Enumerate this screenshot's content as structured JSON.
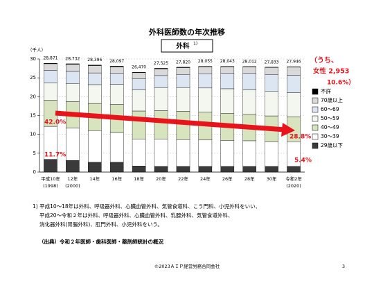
{
  "chart_data": {
    "type": "stacked_bar",
    "title": "外科医師数の年次推移",
    "subtitle": "外科",
    "subtitle_note": "1)",
    "y_label": "（千人）",
    "categories": [
      "平成10年",
      "12年",
      "14年",
      "16年",
      "18年",
      "20年",
      "22年",
      "24年",
      "26年",
      "28年",
      "30年",
      "令和2年"
    ],
    "category_sublabels": [
      "(1998)",
      "(2000)",
      null,
      null,
      null,
      null,
      null,
      null,
      null,
      null,
      null,
      "(2020)"
    ],
    "ylim": [
      0,
      30
    ],
    "yticks": [
      0,
      5,
      10,
      15,
      20,
      25,
      30
    ],
    "grid": true,
    "series": [
      {
        "name": "29歳以下",
        "color": "#3a3a3a",
        "values": [
          3.38,
          3.1,
          2.6,
          2.6,
          1.6,
          1.5,
          1.5,
          1.5,
          1.5,
          1.5,
          1.5,
          1.51
        ]
      },
      {
        "name": "30～39",
        "color": "#ffffff",
        "values": [
          8.75,
          8.6,
          8.4,
          7.9,
          7.2,
          7.3,
          7.1,
          7.0,
          6.9,
          6.8,
          6.6,
          6.54
        ]
      },
      {
        "name": "40～49",
        "color": "#d7e4bd",
        "values": [
          6.9,
          7.0,
          7.2,
          7.5,
          7.4,
          7.5,
          7.5,
          7.4,
          7.2,
          7.0,
          6.8,
          6.6
        ]
      },
      {
        "name": "50～59",
        "color": "#f4f6f0",
        "values": [
          4.6,
          4.8,
          5.0,
          5.3,
          5.6,
          6.1,
          6.3,
          6.4,
          6.5,
          6.5,
          6.5,
          6.4
        ]
      },
      {
        "name": "60～69",
        "color": "#dce6f2",
        "values": [
          3.3,
          3.2,
          3.1,
          2.9,
          2.9,
          3.2,
          3.5,
          3.8,
          4.1,
          4.4,
          4.5,
          4.6
        ]
      },
      {
        "name": "70歳以上",
        "color": "#d9d9d9",
        "values": [
          1.8,
          1.9,
          1.95,
          1.75,
          1.65,
          1.8,
          1.8,
          1.85,
          1.75,
          1.72,
          1.85,
          2.2
        ]
      },
      {
        "name": "不詳",
        "color": "#000000",
        "values": [
          0.14,
          0.13,
          0.15,
          0.15,
          0.12,
          0.13,
          0.12,
          0.1,
          0.09,
          0.09,
          0.08,
          0.1
        ]
      }
    ],
    "totals": {
      "values": [
        28.871,
        28.732,
        28.396,
        28.097,
        26.47,
        27.525,
        27.82,
        28.055,
        28.043,
        28.012,
        27.833,
        27.946
      ],
      "value_labels": [
        "28,871",
        "28,732",
        "28,396",
        "28,097",
        "26,470",
        "27,525",
        "27,820",
        "28,055",
        "28,043",
        "28,012",
        "27,833",
        "27,946"
      ]
    },
    "annotations": [
      "42.0%",
      "11.7%",
      "28.8%",
      "5.4%",
      "（うち、",
      "女性 2,953",
      "10.6%）"
    ]
  },
  "footnotes": [
    "1) 平成10～18年は外科、呼吸器外科、心臓血管外科、気管食道科、こう門科、小児外科をいい、",
    "平成20～令和２年は外科、呼吸器外科、心臓血管外科、乳腺外科、気管食道外科、",
    "消化器外科(胃腸外科)、肛門外科、小児外科をいう。"
  ],
  "source": "（出典）令和２年医師・歯科医師・薬剤師統計の概況",
  "footer": {
    "copyright": "©2023ＡＩＰ経営労務合同会社",
    "page": "3"
  }
}
